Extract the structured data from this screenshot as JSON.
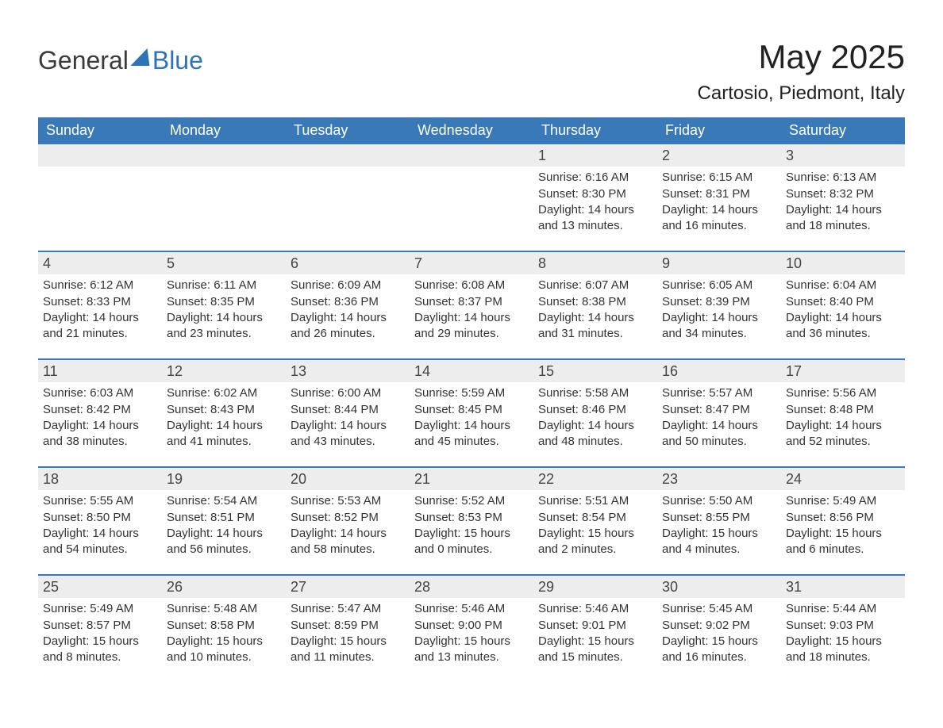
{
  "colors": {
    "header_bg": "#3a79b7",
    "header_text": "#ffffff",
    "row_border": "#3a79b7",
    "daynum_bg": "#ededed",
    "body_text": "#333333",
    "page_bg": "#ffffff",
    "logo_accent": "#2d73b8",
    "logo_text": "#3a3a3a"
  },
  "fonts": {
    "family": "Arial, Helvetica, sans-serif",
    "month_title_pt": 42,
    "location_pt": 24,
    "weekday_pt": 18,
    "daynum_pt": 18,
    "body_pt": 15
  },
  "logo": {
    "part1": "General",
    "part2": "Blue"
  },
  "title": "May 2025",
  "location": "Cartosio, Piedmont, Italy",
  "weekdays": [
    "Sunday",
    "Monday",
    "Tuesday",
    "Wednesday",
    "Thursday",
    "Friday",
    "Saturday"
  ],
  "weeks": [
    [
      {
        "blank": true
      },
      {
        "blank": true
      },
      {
        "blank": true
      },
      {
        "blank": true
      },
      {
        "day": "1",
        "sunrise": "Sunrise: 6:16 AM",
        "sunset": "Sunset: 8:30 PM",
        "daylight": "Daylight: 14 hours and 13 minutes."
      },
      {
        "day": "2",
        "sunrise": "Sunrise: 6:15 AM",
        "sunset": "Sunset: 8:31 PM",
        "daylight": "Daylight: 14 hours and 16 minutes."
      },
      {
        "day": "3",
        "sunrise": "Sunrise: 6:13 AM",
        "sunset": "Sunset: 8:32 PM",
        "daylight": "Daylight: 14 hours and 18 minutes."
      }
    ],
    [
      {
        "day": "4",
        "sunrise": "Sunrise: 6:12 AM",
        "sunset": "Sunset: 8:33 PM",
        "daylight": "Daylight: 14 hours and 21 minutes."
      },
      {
        "day": "5",
        "sunrise": "Sunrise: 6:11 AM",
        "sunset": "Sunset: 8:35 PM",
        "daylight": "Daylight: 14 hours and 23 minutes."
      },
      {
        "day": "6",
        "sunrise": "Sunrise: 6:09 AM",
        "sunset": "Sunset: 8:36 PM",
        "daylight": "Daylight: 14 hours and 26 minutes."
      },
      {
        "day": "7",
        "sunrise": "Sunrise: 6:08 AM",
        "sunset": "Sunset: 8:37 PM",
        "daylight": "Daylight: 14 hours and 29 minutes."
      },
      {
        "day": "8",
        "sunrise": "Sunrise: 6:07 AM",
        "sunset": "Sunset: 8:38 PM",
        "daylight": "Daylight: 14 hours and 31 minutes."
      },
      {
        "day": "9",
        "sunrise": "Sunrise: 6:05 AM",
        "sunset": "Sunset: 8:39 PM",
        "daylight": "Daylight: 14 hours and 34 minutes."
      },
      {
        "day": "10",
        "sunrise": "Sunrise: 6:04 AM",
        "sunset": "Sunset: 8:40 PM",
        "daylight": "Daylight: 14 hours and 36 minutes."
      }
    ],
    [
      {
        "day": "11",
        "sunrise": "Sunrise: 6:03 AM",
        "sunset": "Sunset: 8:42 PM",
        "daylight": "Daylight: 14 hours and 38 minutes."
      },
      {
        "day": "12",
        "sunrise": "Sunrise: 6:02 AM",
        "sunset": "Sunset: 8:43 PM",
        "daylight": "Daylight: 14 hours and 41 minutes."
      },
      {
        "day": "13",
        "sunrise": "Sunrise: 6:00 AM",
        "sunset": "Sunset: 8:44 PM",
        "daylight": "Daylight: 14 hours and 43 minutes."
      },
      {
        "day": "14",
        "sunrise": "Sunrise: 5:59 AM",
        "sunset": "Sunset: 8:45 PM",
        "daylight": "Daylight: 14 hours and 45 minutes."
      },
      {
        "day": "15",
        "sunrise": "Sunrise: 5:58 AM",
        "sunset": "Sunset: 8:46 PM",
        "daylight": "Daylight: 14 hours and 48 minutes."
      },
      {
        "day": "16",
        "sunrise": "Sunrise: 5:57 AM",
        "sunset": "Sunset: 8:47 PM",
        "daylight": "Daylight: 14 hours and 50 minutes."
      },
      {
        "day": "17",
        "sunrise": "Sunrise: 5:56 AM",
        "sunset": "Sunset: 8:48 PM",
        "daylight": "Daylight: 14 hours and 52 minutes."
      }
    ],
    [
      {
        "day": "18",
        "sunrise": "Sunrise: 5:55 AM",
        "sunset": "Sunset: 8:50 PM",
        "daylight": "Daylight: 14 hours and 54 minutes."
      },
      {
        "day": "19",
        "sunrise": "Sunrise: 5:54 AM",
        "sunset": "Sunset: 8:51 PM",
        "daylight": "Daylight: 14 hours and 56 minutes."
      },
      {
        "day": "20",
        "sunrise": "Sunrise: 5:53 AM",
        "sunset": "Sunset: 8:52 PM",
        "daylight": "Daylight: 14 hours and 58 minutes."
      },
      {
        "day": "21",
        "sunrise": "Sunrise: 5:52 AM",
        "sunset": "Sunset: 8:53 PM",
        "daylight": "Daylight: 15 hours and 0 minutes."
      },
      {
        "day": "22",
        "sunrise": "Sunrise: 5:51 AM",
        "sunset": "Sunset: 8:54 PM",
        "daylight": "Daylight: 15 hours and 2 minutes."
      },
      {
        "day": "23",
        "sunrise": "Sunrise: 5:50 AM",
        "sunset": "Sunset: 8:55 PM",
        "daylight": "Daylight: 15 hours and 4 minutes."
      },
      {
        "day": "24",
        "sunrise": "Sunrise: 5:49 AM",
        "sunset": "Sunset: 8:56 PM",
        "daylight": "Daylight: 15 hours and 6 minutes."
      }
    ],
    [
      {
        "day": "25",
        "sunrise": "Sunrise: 5:49 AM",
        "sunset": "Sunset: 8:57 PM",
        "daylight": "Daylight: 15 hours and 8 minutes."
      },
      {
        "day": "26",
        "sunrise": "Sunrise: 5:48 AM",
        "sunset": "Sunset: 8:58 PM",
        "daylight": "Daylight: 15 hours and 10 minutes."
      },
      {
        "day": "27",
        "sunrise": "Sunrise: 5:47 AM",
        "sunset": "Sunset: 8:59 PM",
        "daylight": "Daylight: 15 hours and 11 minutes."
      },
      {
        "day": "28",
        "sunrise": "Sunrise: 5:46 AM",
        "sunset": "Sunset: 9:00 PM",
        "daylight": "Daylight: 15 hours and 13 minutes."
      },
      {
        "day": "29",
        "sunrise": "Sunrise: 5:46 AM",
        "sunset": "Sunset: 9:01 PM",
        "daylight": "Daylight: 15 hours and 15 minutes."
      },
      {
        "day": "30",
        "sunrise": "Sunrise: 5:45 AM",
        "sunset": "Sunset: 9:02 PM",
        "daylight": "Daylight: 15 hours and 16 minutes."
      },
      {
        "day": "31",
        "sunrise": "Sunrise: 5:44 AM",
        "sunset": "Sunset: 9:03 PM",
        "daylight": "Daylight: 15 hours and 18 minutes."
      }
    ]
  ]
}
